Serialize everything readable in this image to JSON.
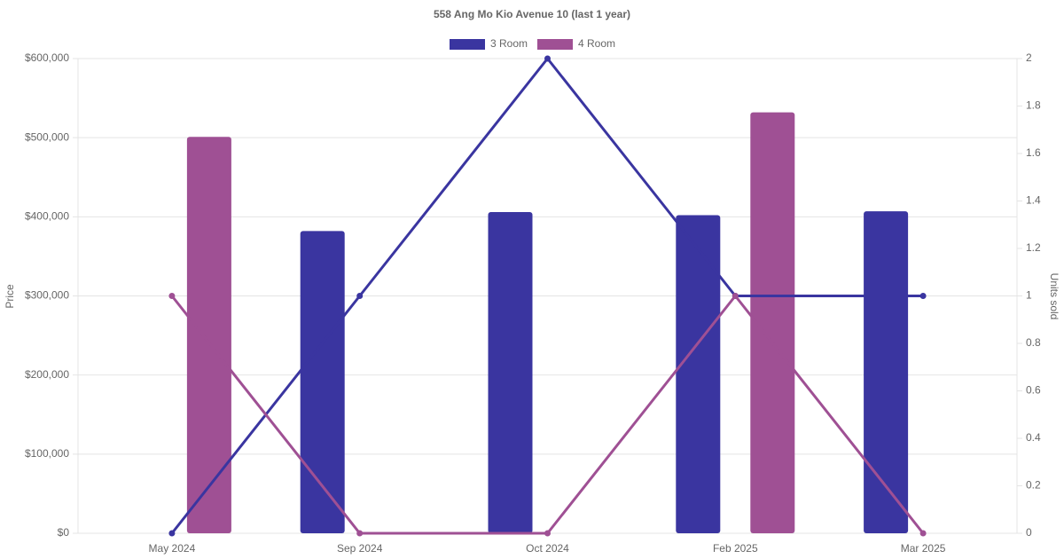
{
  "chart_data": {
    "type": "bar",
    "title": "558 Ang Mo Kio Avenue 10 (last 1 year)",
    "categories": [
      "May 2024",
      "Sep 2024",
      "Oct 2024",
      "Feb 2025",
      "Mar 2025"
    ],
    "series": [
      {
        "name": "3 Room",
        "type": "bar",
        "axis": "y",
        "color": "#3a35a0",
        "values": [
          null,
          382000,
          406000,
          402000,
          407000
        ]
      },
      {
        "name": "4 Room",
        "type": "bar",
        "axis": "y",
        "color": "#9f5094",
        "values": [
          501000,
          null,
          null,
          532000,
          null
        ]
      },
      {
        "name": "3 Room",
        "type": "line",
        "axis": "y2",
        "color": "#3a35a0",
        "values": [
          0,
          1,
          2,
          1,
          1
        ]
      },
      {
        "name": "4 Room",
        "type": "line",
        "axis": "y2",
        "color": "#9f5094",
        "values": [
          1,
          0,
          0,
          1,
          0
        ]
      }
    ],
    "ylabel": "Price",
    "y2label": "Units sold",
    "ylim": [
      0,
      600000
    ],
    "yticks": [
      {
        "value": 0,
        "label": "$0"
      },
      {
        "value": 100000,
        "label": "$100,000"
      },
      {
        "value": 200000,
        "label": "$200,000"
      },
      {
        "value": 300000,
        "label": "$300,000"
      },
      {
        "value": 400000,
        "label": "$400,000"
      },
      {
        "value": 500000,
        "label": "$500,000"
      },
      {
        "value": 600000,
        "label": "$600,000"
      }
    ],
    "y2lim": [
      0,
      2
    ],
    "y2ticks": [
      0,
      0.2,
      0.4,
      0.6,
      0.8,
      1,
      1.2,
      1.4,
      1.6,
      1.8,
      2
    ],
    "grid": true,
    "legend": "top"
  }
}
